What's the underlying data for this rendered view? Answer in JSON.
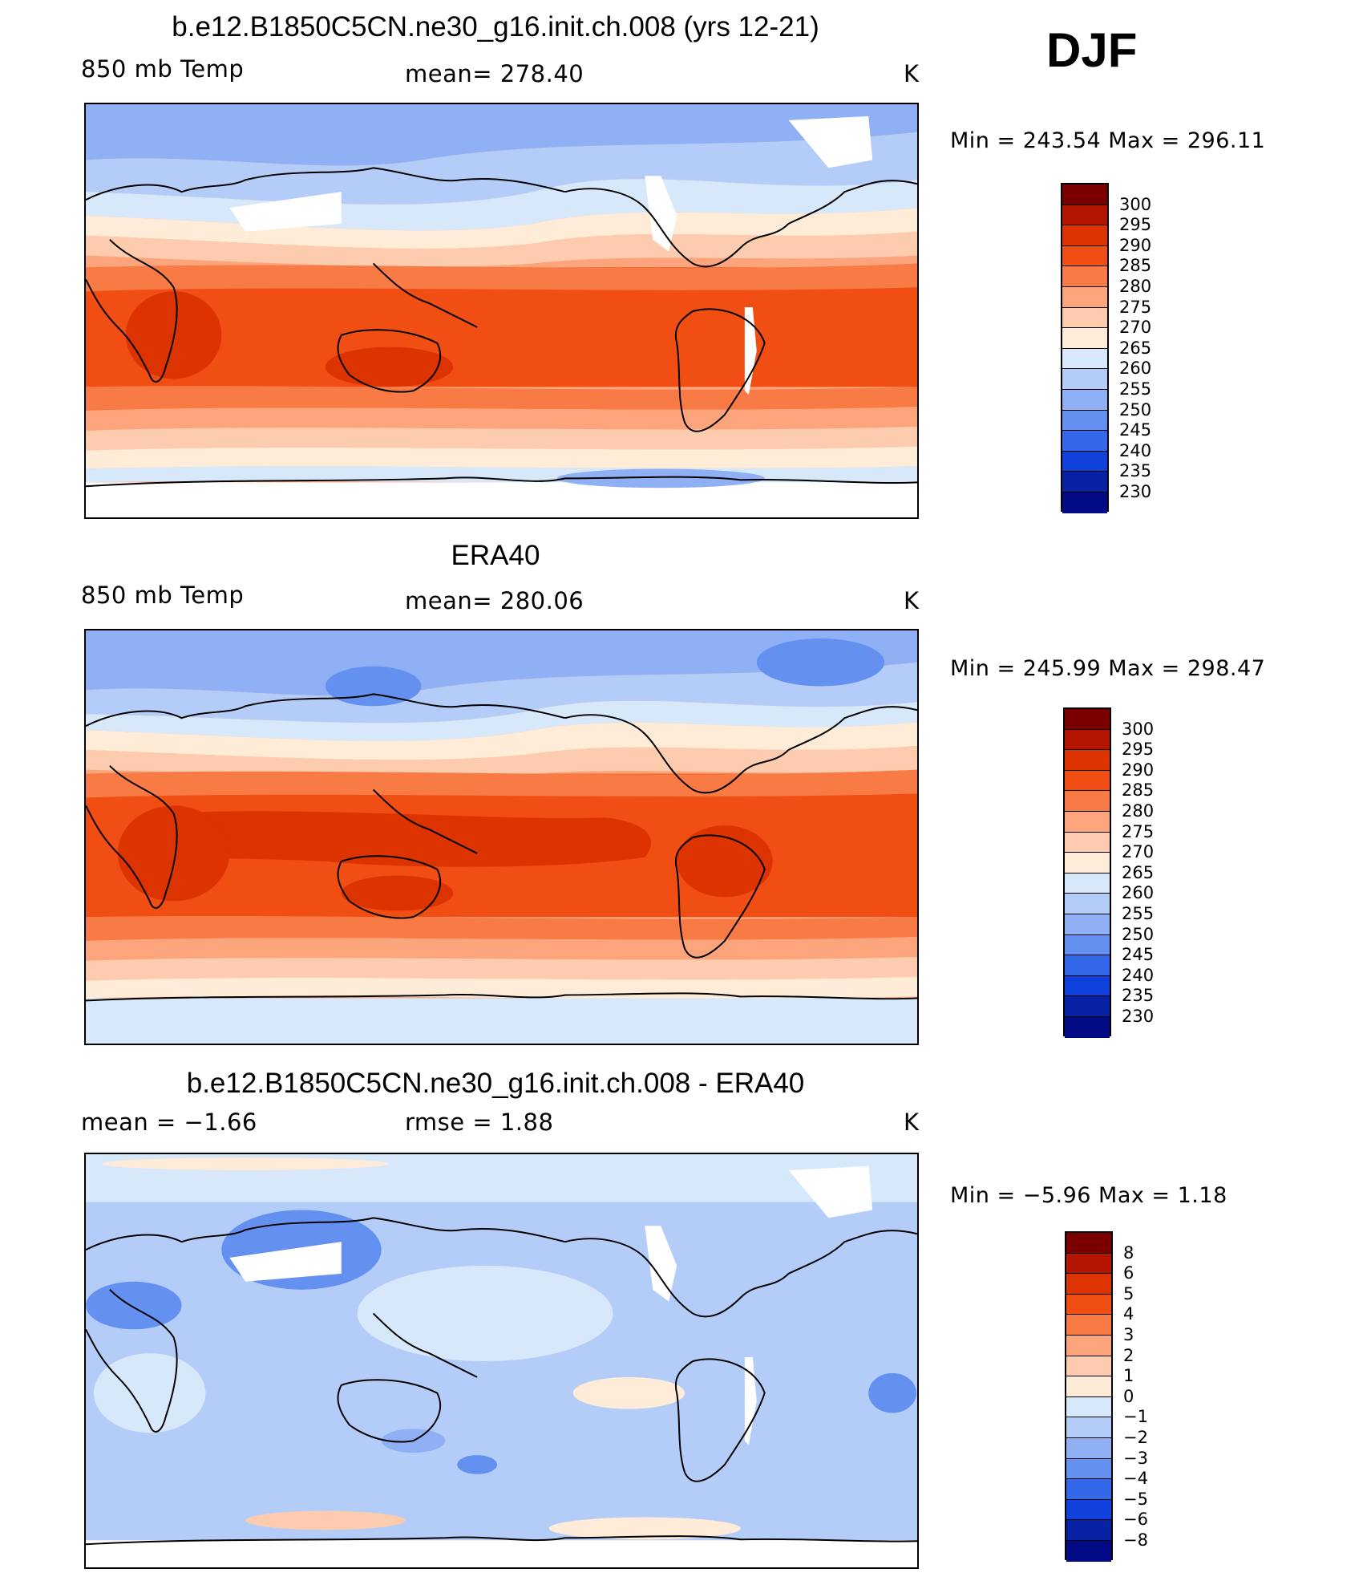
{
  "season": "DJF",
  "colors": {
    "temp_scale": [
      "#7a0000",
      "#b31500",
      "#dc3300",
      "#f04e13",
      "#f87a45",
      "#fca57c",
      "#fdcbae",
      "#feebd8",
      "#d8e8fb",
      "#b4cdf8",
      "#8fb0f4",
      "#6491f0",
      "#3468ea",
      "#1141dd",
      "#0722a4",
      "#020a86"
    ],
    "diff_scale": [
      "#7a0000",
      "#b31500",
      "#dc3300",
      "#f04e13",
      "#f87a45",
      "#fca57c",
      "#fdcbae",
      "#feebd8",
      "#d8e8fb",
      "#b4cdf8",
      "#8fb0f4",
      "#6491f0",
      "#3468ea",
      "#1141dd",
      "#0722a4",
      "#020a86"
    ]
  },
  "panels": [
    {
      "title": "b.e12.B1850C5CN.ne30_g16.init.ch.008 (yrs 12-21)",
      "left_label": "850 mb Temp",
      "center_label": "mean=  278.40",
      "units": "K",
      "minmax": "Min  =  243.54  Max  =  296.11",
      "colorbar_labels": [
        "300",
        "295",
        "290",
        "285",
        "280",
        "275",
        "270",
        "265",
        "260",
        "255",
        "250",
        "245",
        "240",
        "235",
        "230"
      ]
    },
    {
      "title": "ERA40",
      "left_label": "850 mb Temp",
      "center_label": "mean=  280.06",
      "units": "K",
      "minmax": "Min  =  245.99  Max  =  298.47",
      "colorbar_labels": [
        "300",
        "295",
        "290",
        "285",
        "280",
        "275",
        "270",
        "265",
        "260",
        "255",
        "250",
        "245",
        "240",
        "235",
        "230"
      ]
    },
    {
      "title": "b.e12.B1850C5CN.ne30_g16.init.ch.008 - ERA40",
      "left_label": "mean  =    −1.66",
      "center_label": "rmse  =     1.88",
      "units": "K",
      "minmax": "Min  =    −5.96  Max  =     1.18",
      "colorbar_labels": [
        "8",
        "6",
        "5",
        "4",
        "3",
        "2",
        "1",
        "0",
        "−1",
        "−2",
        "−3",
        "−4",
        "−5",
        "−6",
        "−8"
      ]
    }
  ]
}
